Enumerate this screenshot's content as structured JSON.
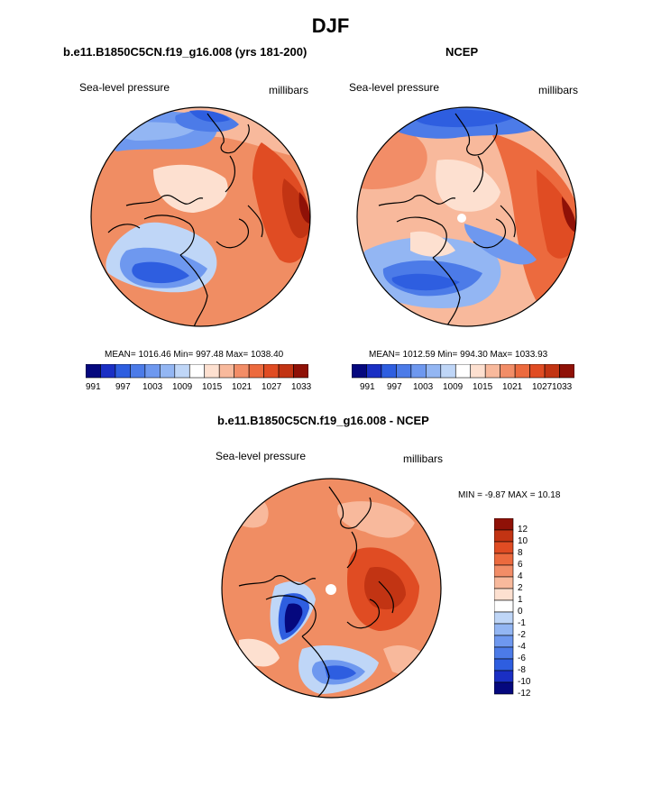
{
  "title": "DJF",
  "colors": {
    "scale": [
      "#05087e",
      "#1a2fc4",
      "#2e5ee0",
      "#4c7be8",
      "#6e98ef",
      "#93b6f3",
      "#bfd6f7",
      "#ffffff",
      "#fde0d0",
      "#f8b99c",
      "#f28d67",
      "#ec6a3e",
      "#e04c23",
      "#c23413",
      "#8f1107"
    ]
  },
  "panels": [
    {
      "id": "model",
      "title": "b.e11.B1850C5CN.f19_g16.008 (yrs 181-200)",
      "left_label": "Sea-level pressure",
      "right_label": "millibars",
      "stats": "MEAN= 1016.46  Min= 997.48  Max= 1038.40",
      "colorbar_labels": [
        "991",
        "997",
        "1003",
        "1009",
        "1015",
        "1021",
        "1027",
        "1033"
      ]
    },
    {
      "id": "obs",
      "title": "NCEP",
      "left_label": "Sea-level pressure",
      "right_label": "millibars",
      "stats": "MEAN= 1012.59  Min= 994.30  Max= 1033.93",
      "colorbar_labels": [
        "991",
        "997",
        "1003",
        "1009",
        "1015",
        "1021",
        "1027",
        "1033"
      ]
    },
    {
      "id": "diff",
      "title": "b.e11.B1850C5CN.f19_g16.008 - NCEP",
      "left_label": "Sea-level pressure",
      "right_label": "millibars",
      "stats": "MIN =  -9.87 MAX =  10.18",
      "colorbar_labels": [
        "12",
        "10",
        "8",
        "6",
        "4",
        "2",
        "1",
        "0",
        "-1",
        "-2",
        "-4",
        "-6",
        "-8",
        "-10",
        "-12"
      ]
    }
  ],
  "chart_data": [
    {
      "type": "heatmap",
      "title": "b.e11.B1850C5CN.f19_g16.008 (yrs 181-200)",
      "variable": "Sea-level pressure",
      "units": "millibars",
      "projection": "north polar stereographic",
      "mean": 1016.46,
      "min": 997.48,
      "max": 1038.4,
      "levels": [
        991,
        994,
        997,
        1000,
        1003,
        1006,
        1009,
        1012,
        1015,
        1018,
        1021,
        1024,
        1027,
        1030,
        1033
      ]
    },
    {
      "type": "heatmap",
      "title": "NCEP",
      "variable": "Sea-level pressure",
      "units": "millibars",
      "projection": "north polar stereographic",
      "mean": 1012.59,
      "min": 994.3,
      "max": 1033.93,
      "levels": [
        991,
        994,
        997,
        1000,
        1003,
        1006,
        1009,
        1012,
        1015,
        1018,
        1021,
        1024,
        1027,
        1030,
        1033
      ]
    },
    {
      "type": "heatmap",
      "title": "b.e11.B1850C5CN.f19_g16.008 - NCEP",
      "variable": "Sea-level pressure",
      "units": "millibars",
      "projection": "north polar stereographic",
      "min": -9.87,
      "max": 10.18,
      "levels": [
        -12,
        -10,
        -8,
        -6,
        -4,
        -2,
        -1,
        0,
        1,
        2,
        4,
        6,
        8,
        10,
        12
      ]
    }
  ]
}
